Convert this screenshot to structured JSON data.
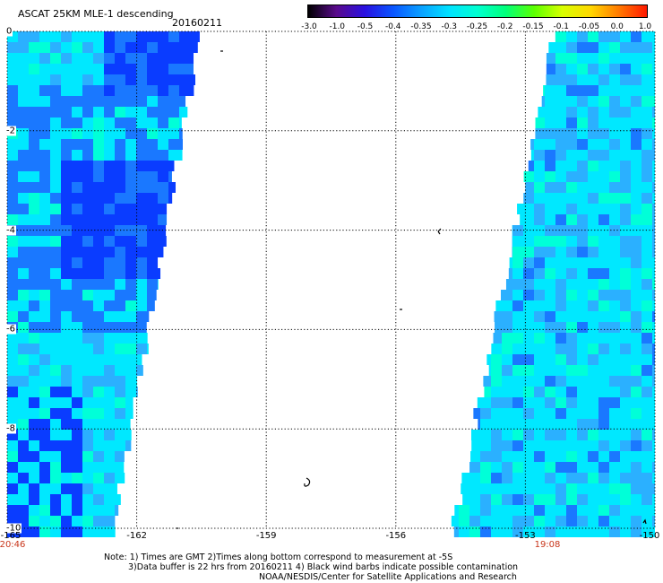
{
  "header": {
    "title": "ASCAT 25KM MLE-1 descending",
    "date": "20160211"
  },
  "colorbar": {
    "tick_labels": [
      "-3.0",
      "-1.0",
      "-0.5",
      "-0.4",
      "-0.35",
      "-0.3",
      "-0.25",
      "-0.2",
      "-0.15",
      "-0.1",
      "-0.05",
      "0.0",
      "1.0"
    ],
    "colors": [
      "#000000",
      "#5a0a8c",
      "#2a10e0",
      "#0a55ff",
      "#0aa0ff",
      "#00e2ff",
      "#00ffd0",
      "#00ff7a",
      "#5aff00",
      "#d8ff00",
      "#ffd800",
      "#ff7a00",
      "#ff1800"
    ]
  },
  "map": {
    "lat_labels": [
      "0",
      "-2",
      "-4",
      "-6",
      "-8",
      "-10"
    ],
    "lon_labels": [
      "-165",
      "-162",
      "-159",
      "-156",
      "-153",
      "-150"
    ],
    "time_labels": {
      "left": "20:46",
      "right": "19:08"
    },
    "lon_range": [
      -165,
      -150
    ],
    "lat_range": [
      -10,
      0
    ],
    "swath_colors": {
      "dark_blue": "#0a3cff",
      "blue": "#1a78ff",
      "light_blue": "#2bb0ff",
      "cyan": "#00e8ff",
      "aqua": "#00ffd8",
      "green": "#00ff90"
    }
  },
  "footer": {
    "line1": "Note: 1) Times are GMT 2)Times along bottom correspond to measurement at -5S",
    "line2": "3)Data buffer is 22 hrs from 20160211 4) Black wind barbs indicate possible contamination",
    "line3": "NOAA/NESDIS/Center for Satellite Applications and Research"
  }
}
